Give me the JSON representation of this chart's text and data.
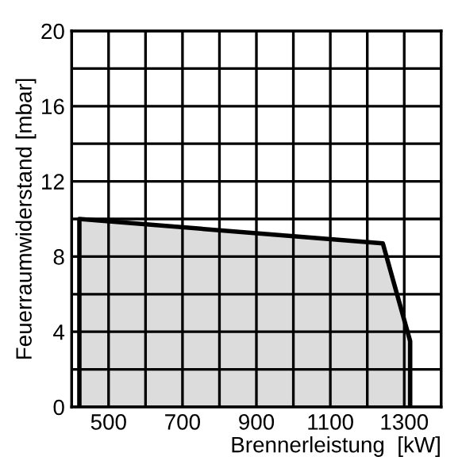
{
  "chart_data": {
    "type": "area",
    "xlabel": "Brennerleistung  [kW]",
    "ylabel": "Feuerraumwiderstand [mbar]",
    "x": [
      421,
      421,
      1242,
      1316,
      1316
    ],
    "series": [
      {
        "color": "#dcdcdc",
        "values": [
          0,
          10,
          8.7,
          3.5,
          0
        ]
      }
    ],
    "xlim": [
      400,
      1400
    ],
    "xticks": [
      {
        "value": 400,
        "label": null
      },
      500,
      {
        "value": 600,
        "label": null
      },
      700,
      {
        "value": 800,
        "label": null
      },
      900,
      {
        "value": 1000,
        "label": null
      },
      1100,
      {
        "value": 1200,
        "label": null
      },
      1300,
      {
        "value": 1400,
        "label": null
      }
    ],
    "ylim": [
      0,
      20
    ],
    "yticks": [
      0,
      {
        "value": 2,
        "label": null
      },
      4,
      {
        "value": 6,
        "label": null
      },
      8,
      {
        "value": 10,
        "label": null
      },
      12,
      {
        "value": 14,
        "label": null
      },
      16,
      {
        "value": 18,
        "label": null
      },
      20
    ],
    "grid": true,
    "legend": false
  }
}
